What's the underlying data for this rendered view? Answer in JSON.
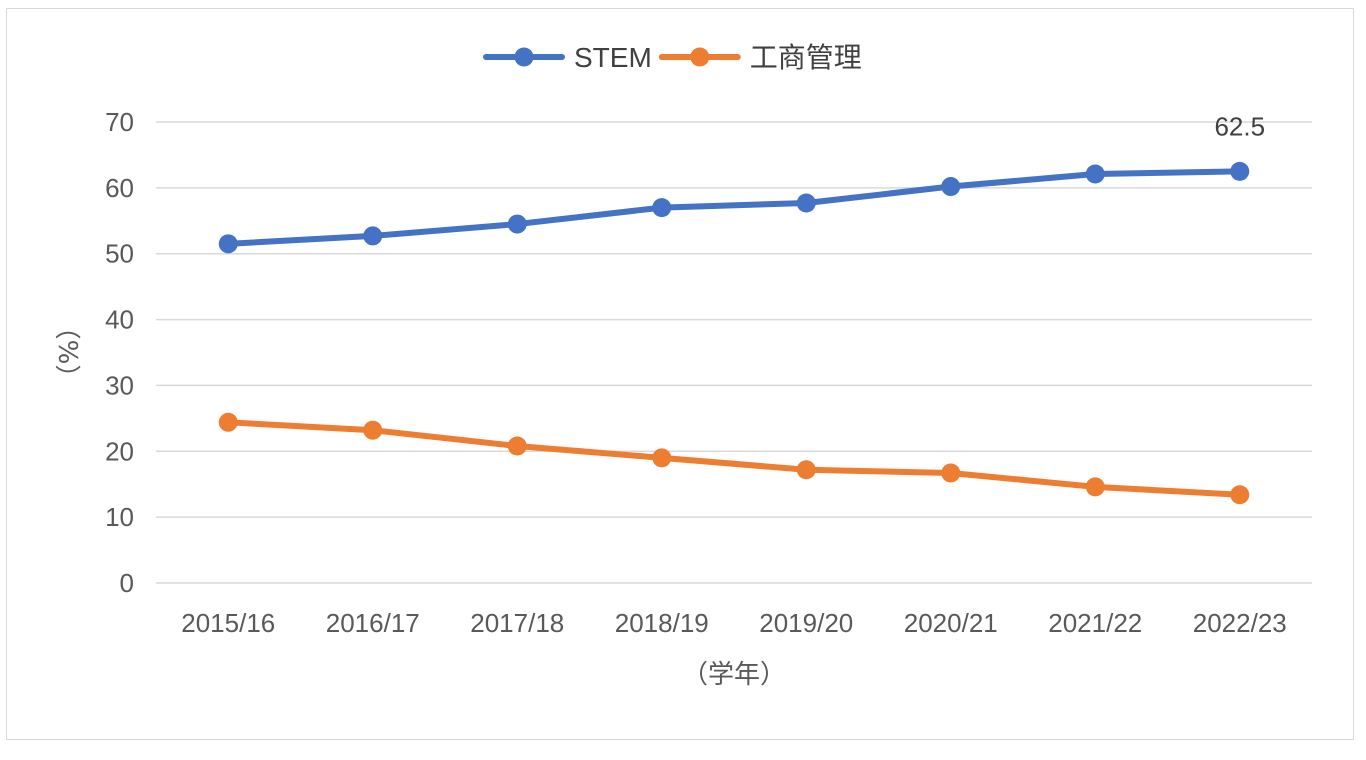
{
  "chart_data": {
    "type": "line",
    "categories": [
      "2015/16",
      "2016/17",
      "2017/18",
      "2018/19",
      "2019/20",
      "2020/21",
      "2021/22",
      "2022/23"
    ],
    "series": [
      {
        "name": "STEM",
        "color": "#4472C4",
        "values": [
          51.5,
          52.7,
          54.5,
          57.0,
          57.7,
          60.2,
          62.1,
          62.5
        ]
      },
      {
        "name": "工商管理",
        "color": "#ED7D31",
        "values": [
          24.4,
          23.2,
          20.8,
          19.0,
          17.2,
          16.7,
          14.6,
          13.4
        ]
      }
    ],
    "data_labels": [
      {
        "series": 0,
        "index": 7,
        "text": "62.5"
      }
    ],
    "ylim": [
      0,
      70
    ],
    "yticks": [
      0,
      10,
      20,
      30,
      40,
      50,
      60,
      70
    ],
    "ylabel": "（%）",
    "xlabel": "（学年）",
    "grid": true,
    "legend_position": "top-center"
  }
}
